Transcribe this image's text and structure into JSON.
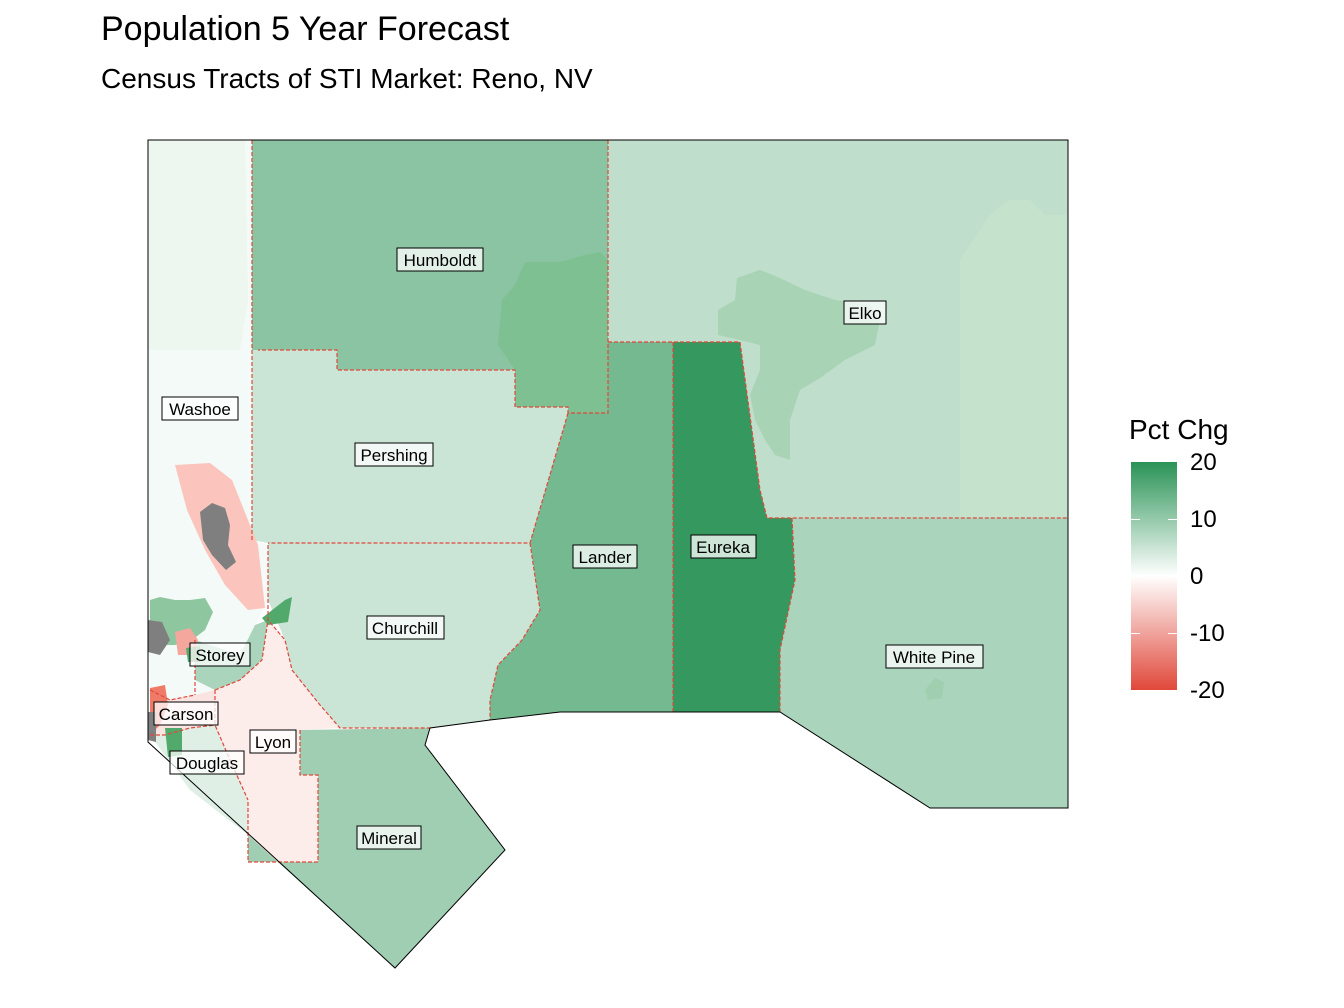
{
  "title": "Population 5 Year Forecast",
  "subtitle": "Census Tracts of STI Market: Reno, NV",
  "legend": {
    "title": "Pct Chg",
    "ticks": [
      "20",
      "10",
      "0",
      "-10",
      "-20"
    ],
    "range": [
      -20,
      20
    ],
    "colors": {
      "high": "#2a9356",
      "mid": "#ffffff",
      "low": "#e0483a"
    }
  },
  "counties": [
    {
      "name": "Humboldt",
      "value": 11
    },
    {
      "name": "Elko",
      "value": 6
    },
    {
      "name": "Washoe",
      "value": 1
    },
    {
      "name": "Pershing",
      "value": 5
    },
    {
      "name": "Lander",
      "value": 13
    },
    {
      "name": "Eureka",
      "value": 19
    },
    {
      "name": "Churchill",
      "value": 5
    },
    {
      "name": "White Pine",
      "value": 8
    },
    {
      "name": "Storey",
      "value": 8
    },
    {
      "name": "Carson",
      "value": -3
    },
    {
      "name": "Lyon",
      "value": -2
    },
    {
      "name": "Douglas",
      "value": 3
    },
    {
      "name": "Mineral",
      "value": 9
    }
  ],
  "no_data_color": "#7f7f7f"
}
